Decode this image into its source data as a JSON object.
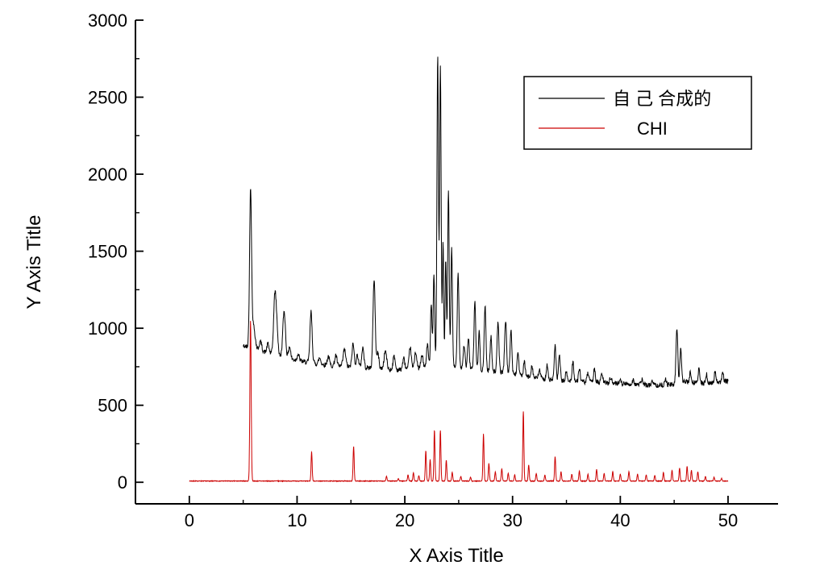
{
  "figure": {
    "background": "#ffffff",
    "axis_color": "#000000"
  },
  "chart_data": {
    "type": "line",
    "title": "",
    "xlabel": "X Axis Title",
    "ylabel": "Y Axis Title",
    "xlim": [
      -5,
      54.64
    ],
    "ylim": [
      -140,
      3000
    ],
    "x_ticks": [
      0,
      10,
      20,
      30,
      40,
      50
    ],
    "x_minor_ticks": [
      5,
      15,
      25,
      35,
      45
    ],
    "y_ticks": [
      0,
      500,
      1000,
      1500,
      2000,
      2500,
      3000
    ],
    "y_minor_ticks": [
      250,
      750,
      1250,
      1750,
      2250,
      2750
    ],
    "grid": false,
    "legend_position": "upper-right",
    "axis_color": "#000000",
    "series": [
      {
        "name": "自 己 合成的",
        "color": "#000000",
        "x_start": 5.0,
        "x_end": 50.0,
        "step": 0.03,
        "noise": 16,
        "seed": 42,
        "baseline": [
          [
            5,
            885
          ],
          [
            7,
            845
          ],
          [
            9,
            805
          ],
          [
            11,
            778
          ],
          [
            13,
            758
          ],
          [
            15,
            748
          ],
          [
            17,
            742
          ],
          [
            19,
            728
          ],
          [
            21,
            738
          ],
          [
            23,
            755
          ],
          [
            25,
            745
          ],
          [
            27,
            730
          ],
          [
            29,
            715
          ],
          [
            31,
            690
          ],
          [
            33,
            668
          ],
          [
            35,
            656
          ],
          [
            37,
            650
          ],
          [
            39,
            645
          ],
          [
            41,
            636
          ],
          [
            43,
            630
          ],
          [
            45,
            634
          ],
          [
            46,
            652
          ],
          [
            48,
            640
          ],
          [
            50,
            658
          ]
        ],
        "peaks": [
          [
            5.68,
            1020,
            0.09
          ],
          [
            5.95,
            150,
            0.15
          ],
          [
            6.6,
            60,
            0.12
          ],
          [
            7.3,
            60,
            0.1
          ],
          [
            7.95,
            400,
            0.12
          ],
          [
            8.15,
            120,
            0.1
          ],
          [
            8.8,
            300,
            0.12
          ],
          [
            9.3,
            80,
            0.1
          ],
          [
            10.1,
            40,
            0.1
          ],
          [
            11.3,
            330,
            0.1
          ],
          [
            12.1,
            40,
            0.1
          ],
          [
            12.9,
            60,
            0.1
          ],
          [
            13.6,
            70,
            0.1
          ],
          [
            14.4,
            110,
            0.12
          ],
          [
            15.2,
            150,
            0.1
          ],
          [
            15.6,
            80,
            0.1
          ],
          [
            16.1,
            130,
            0.1
          ],
          [
            17.15,
            580,
            0.1
          ],
          [
            17.5,
            100,
            0.1
          ],
          [
            18.2,
            120,
            0.12
          ],
          [
            19.0,
            90,
            0.1
          ],
          [
            19.9,
            70,
            0.1
          ],
          [
            20.5,
            140,
            0.1
          ],
          [
            21.0,
            110,
            0.1
          ],
          [
            21.6,
            80,
            0.1
          ],
          [
            22.1,
            150,
            0.08
          ],
          [
            22.45,
            420,
            0.07
          ],
          [
            22.7,
            600,
            0.07
          ],
          [
            23.05,
            2020,
            0.07
          ],
          [
            23.3,
            1950,
            0.07
          ],
          [
            23.55,
            800,
            0.06
          ],
          [
            23.8,
            700,
            0.06
          ],
          [
            24.05,
            1150,
            0.07
          ],
          [
            24.35,
            780,
            0.07
          ],
          [
            24.95,
            620,
            0.08
          ],
          [
            25.5,
            150,
            0.08
          ],
          [
            25.9,
            200,
            0.08
          ],
          [
            26.5,
            440,
            0.08
          ],
          [
            26.9,
            250,
            0.07
          ],
          [
            27.45,
            420,
            0.08
          ],
          [
            28.0,
            220,
            0.08
          ],
          [
            28.65,
            320,
            0.08
          ],
          [
            29.35,
            340,
            0.09
          ],
          [
            29.85,
            290,
            0.08
          ],
          [
            30.5,
            150,
            0.08
          ],
          [
            31.1,
            90,
            0.08
          ],
          [
            31.8,
            80,
            0.08
          ],
          [
            32.5,
            60,
            0.08
          ],
          [
            33.2,
            90,
            0.08
          ],
          [
            33.95,
            220,
            0.08
          ],
          [
            34.35,
            170,
            0.08
          ],
          [
            35.0,
            60,
            0.08
          ],
          [
            35.6,
            130,
            0.08
          ],
          [
            36.2,
            90,
            0.08
          ],
          [
            37.0,
            60,
            0.08
          ],
          [
            37.6,
            90,
            0.08
          ],
          [
            38.3,
            60,
            0.08
          ],
          [
            39.1,
            40,
            0.08
          ],
          [
            40.0,
            30,
            0.08
          ],
          [
            41.2,
            30,
            0.08
          ],
          [
            42.0,
            35,
            0.08
          ],
          [
            43.0,
            30,
            0.08
          ],
          [
            44.2,
            40,
            0.08
          ],
          [
            45.25,
            360,
            0.08
          ],
          [
            45.6,
            220,
            0.08
          ],
          [
            46.5,
            60,
            0.08
          ],
          [
            47.3,
            90,
            0.08
          ],
          [
            48.0,
            60,
            0.08
          ],
          [
            48.8,
            70,
            0.08
          ],
          [
            49.5,
            55,
            0.08
          ]
        ]
      },
      {
        "name": "CHI",
        "color": "#cc0000",
        "x_start": 0.0,
        "x_end": 50.0,
        "step": 0.02,
        "noise": 2,
        "seed": 7,
        "baseline": [
          [
            0,
            8
          ],
          [
            50,
            8
          ]
        ],
        "peaks": [
          [
            5.68,
            1040,
            0.06
          ],
          [
            11.35,
            190,
            0.05
          ],
          [
            15.25,
            225,
            0.05
          ],
          [
            18.3,
            30,
            0.05
          ],
          [
            19.4,
            15,
            0.05
          ],
          [
            20.3,
            40,
            0.05
          ],
          [
            20.8,
            55,
            0.05
          ],
          [
            21.3,
            35,
            0.05
          ],
          [
            21.95,
            195,
            0.05
          ],
          [
            22.35,
            140,
            0.05
          ],
          [
            22.75,
            330,
            0.05
          ],
          [
            23.3,
            330,
            0.05
          ],
          [
            23.85,
            135,
            0.05
          ],
          [
            24.4,
            55,
            0.05
          ],
          [
            25.2,
            30,
            0.05
          ],
          [
            26.1,
            25,
            0.05
          ],
          [
            27.3,
            305,
            0.05
          ],
          [
            27.8,
            115,
            0.05
          ],
          [
            28.4,
            60,
            0.05
          ],
          [
            29.0,
            80,
            0.05
          ],
          [
            29.6,
            50,
            0.05
          ],
          [
            30.2,
            40,
            0.05
          ],
          [
            31.0,
            450,
            0.05
          ],
          [
            31.5,
            105,
            0.05
          ],
          [
            32.2,
            50,
            0.05
          ],
          [
            33.0,
            40,
            0.05
          ],
          [
            33.95,
            160,
            0.05
          ],
          [
            34.5,
            60,
            0.05
          ],
          [
            35.5,
            45,
            0.05
          ],
          [
            36.2,
            65,
            0.05
          ],
          [
            37.0,
            45,
            0.05
          ],
          [
            37.8,
            75,
            0.05
          ],
          [
            38.5,
            50,
            0.05
          ],
          [
            39.3,
            60,
            0.05
          ],
          [
            40.0,
            45,
            0.05
          ],
          [
            40.8,
            60,
            0.05
          ],
          [
            41.6,
            45,
            0.05
          ],
          [
            42.4,
            40,
            0.05
          ],
          [
            43.2,
            35,
            0.05
          ],
          [
            44.0,
            55,
            0.05
          ],
          [
            44.8,
            70,
            0.05
          ],
          [
            45.5,
            85,
            0.05
          ],
          [
            46.2,
            95,
            0.05
          ],
          [
            46.6,
            70,
            0.05
          ],
          [
            47.2,
            60,
            0.05
          ],
          [
            47.9,
            30,
            0.05
          ],
          [
            48.7,
            25,
            0.05
          ],
          [
            49.4,
            18,
            0.05
          ]
        ]
      }
    ]
  }
}
